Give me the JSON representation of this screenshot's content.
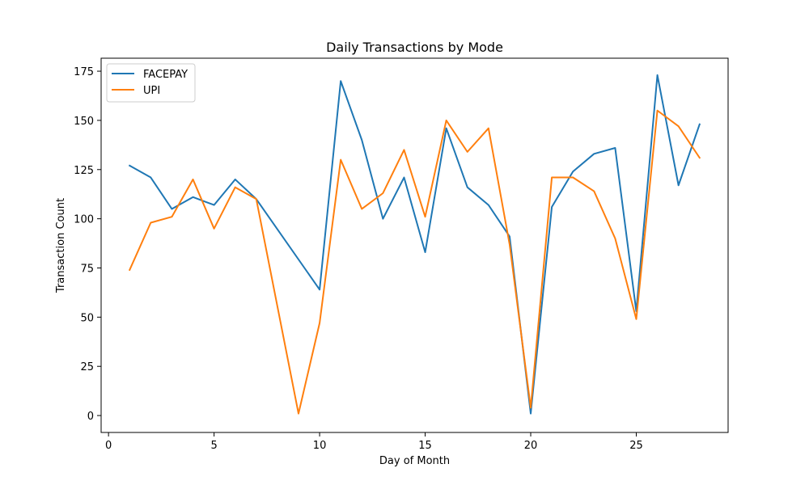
{
  "chart_data": {
    "type": "line",
    "title": "Daily Transactions by Mode",
    "xlabel": "Day of Month",
    "ylabel": "Transaction Count",
    "xlim": [
      -0.35,
      29.35
    ],
    "ylim": [
      -8.6,
      181.6
    ],
    "xticks": [
      0,
      5,
      10,
      15,
      20,
      25
    ],
    "yticks": [
      0,
      25,
      50,
      75,
      100,
      125,
      150,
      175
    ],
    "grid": false,
    "legend_position": "top-left",
    "series": [
      {
        "name": "FACEPAY",
        "color": "#1f77b4",
        "x": [
          1,
          2,
          3,
          4,
          5,
          6,
          7,
          10,
          11,
          12,
          13,
          14,
          15,
          16,
          17,
          18,
          19,
          20,
          21,
          22,
          23,
          24,
          25,
          26,
          27,
          28
        ],
        "y": [
          127,
          121,
          105,
          111,
          107,
          120,
          110,
          64,
          170,
          140,
          100,
          121,
          83,
          146,
          116,
          107,
          91,
          1,
          106,
          124,
          133,
          136,
          53,
          173,
          117,
          148
        ]
      },
      {
        "name": "UPI",
        "color": "#ff7f0e",
        "x": [
          1,
          2,
          3,
          4,
          5,
          6,
          7,
          9,
          10,
          11,
          12,
          13,
          14,
          15,
          16,
          17,
          18,
          19,
          20,
          21,
          22,
          23,
          24,
          25,
          26,
          27,
          28
        ],
        "y": [
          74,
          98,
          101,
          120,
          95,
          116,
          110,
          1,
          47,
          130,
          105,
          113,
          135,
          101,
          150,
          134,
          146,
          87,
          4,
          121,
          121,
          114,
          90,
          49,
          155,
          147,
          131
        ]
      }
    ]
  }
}
